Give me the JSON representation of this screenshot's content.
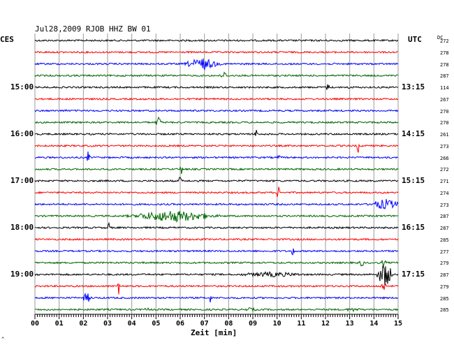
{
  "chart_data": {
    "type": "helicorder",
    "title": "Jul28,2009   RJOB HHZ BW 01",
    "left_tz": "CES",
    "right_tz": "UTC",
    "dc_header": "DC",
    "xlabel": "Zeit [min]",
    "x_ticks": [
      "00",
      "01",
      "02",
      "03",
      "04",
      "05",
      "06",
      "07",
      "08",
      "09",
      "10",
      "11",
      "12",
      "13",
      "14",
      "15"
    ],
    "xlim": [
      0,
      15
    ],
    "grid": true,
    "trace_colors": [
      "#000000",
      "#ff0000",
      "#0000ff",
      "#006600"
    ],
    "left_time_labels": [
      {
        "row": 4,
        "text": "15:00"
      },
      {
        "row": 8,
        "text": "16:00"
      },
      {
        "row": 12,
        "text": "17:00"
      },
      {
        "row": 16,
        "text": "18:00"
      },
      {
        "row": 20,
        "text": "19:00"
      }
    ],
    "right_time_labels": [
      {
        "row": 4,
        "text": "13:15"
      },
      {
        "row": 8,
        "text": "14:15"
      },
      {
        "row": 12,
        "text": "15:15"
      },
      {
        "row": 16,
        "text": "16:15"
      },
      {
        "row": 20,
        "text": "17:15"
      }
    ],
    "dc_values": [
      "272",
      "278",
      "278",
      "287",
      "114",
      "267",
      "270",
      "270",
      "261",
      "273",
      "266",
      "272",
      "271",
      "274",
      "273",
      "287",
      "287",
      "285",
      "277",
      "279",
      "287",
      "279",
      "285",
      "285"
    ],
    "events": [
      {
        "row": 2,
        "start_min": 6.3,
        "end_min": 7.5,
        "amp": 9
      },
      {
        "row": 3,
        "start_min": 7.7,
        "end_min": 7.9,
        "amp": 8
      },
      {
        "row": 4,
        "start_min": 12.05,
        "end_min": 12.15,
        "amp": 8
      },
      {
        "row": 4,
        "start_min": 12.95,
        "end_min": 13.05,
        "amp": 5
      },
      {
        "row": 6,
        "start_min": 1.2,
        "end_min": 1.3,
        "amp": 5
      },
      {
        "row": 7,
        "start_min": 5.0,
        "end_min": 5.2,
        "amp": 10
      },
      {
        "row": 8,
        "start_min": 9.1,
        "end_min": 9.2,
        "amp": 10
      },
      {
        "row": 9,
        "start_min": 13.3,
        "end_min": 13.4,
        "amp": 12
      },
      {
        "row": 10,
        "start_min": 2.15,
        "end_min": 2.25,
        "amp": 10
      },
      {
        "row": 10,
        "start_min": 10.0,
        "end_min": 10.15,
        "amp": 4
      },
      {
        "row": 11,
        "start_min": 6.0,
        "end_min": 6.1,
        "amp": 10
      },
      {
        "row": 12,
        "start_min": 5.95,
        "end_min": 6.05,
        "amp": 10
      },
      {
        "row": 13,
        "start_min": 10.0,
        "end_min": 10.1,
        "amp": 14
      },
      {
        "row": 14,
        "start_min": 13.9,
        "end_min": 15.0,
        "amp": 8
      },
      {
        "row": 15,
        "start_min": 4.2,
        "end_min": 7.2,
        "amp": 9
      },
      {
        "row": 16,
        "start_min": 3.0,
        "end_min": 3.1,
        "amp": 8
      },
      {
        "row": 18,
        "start_min": 10.6,
        "end_min": 10.7,
        "amp": 12
      },
      {
        "row": 19,
        "start_min": 13.4,
        "end_min": 13.6,
        "amp": 6
      },
      {
        "row": 19,
        "start_min": 14.3,
        "end_min": 14.5,
        "amp": 6
      },
      {
        "row": 20,
        "start_min": 8.5,
        "end_min": 11.0,
        "amp": 4
      },
      {
        "row": 20,
        "start_min": 14.2,
        "end_min": 14.7,
        "amp": 20
      },
      {
        "row": 21,
        "start_min": 3.4,
        "end_min": 3.5,
        "amp": 14
      },
      {
        "row": 21,
        "start_min": 14.3,
        "end_min": 14.5,
        "amp": 8
      },
      {
        "row": 22,
        "start_min": 2.0,
        "end_min": 2.3,
        "amp": 8
      },
      {
        "row": 22,
        "start_min": 7.2,
        "end_min": 7.3,
        "amp": 8
      },
      {
        "row": 23,
        "start_min": 4.5,
        "end_min": 4.8,
        "amp": 3
      },
      {
        "row": 23,
        "start_min": 8.6,
        "end_min": 9.2,
        "amp": 3
      },
      {
        "row": 23,
        "start_min": 12.8,
        "end_min": 13.5,
        "amp": 3
      }
    ]
  }
}
